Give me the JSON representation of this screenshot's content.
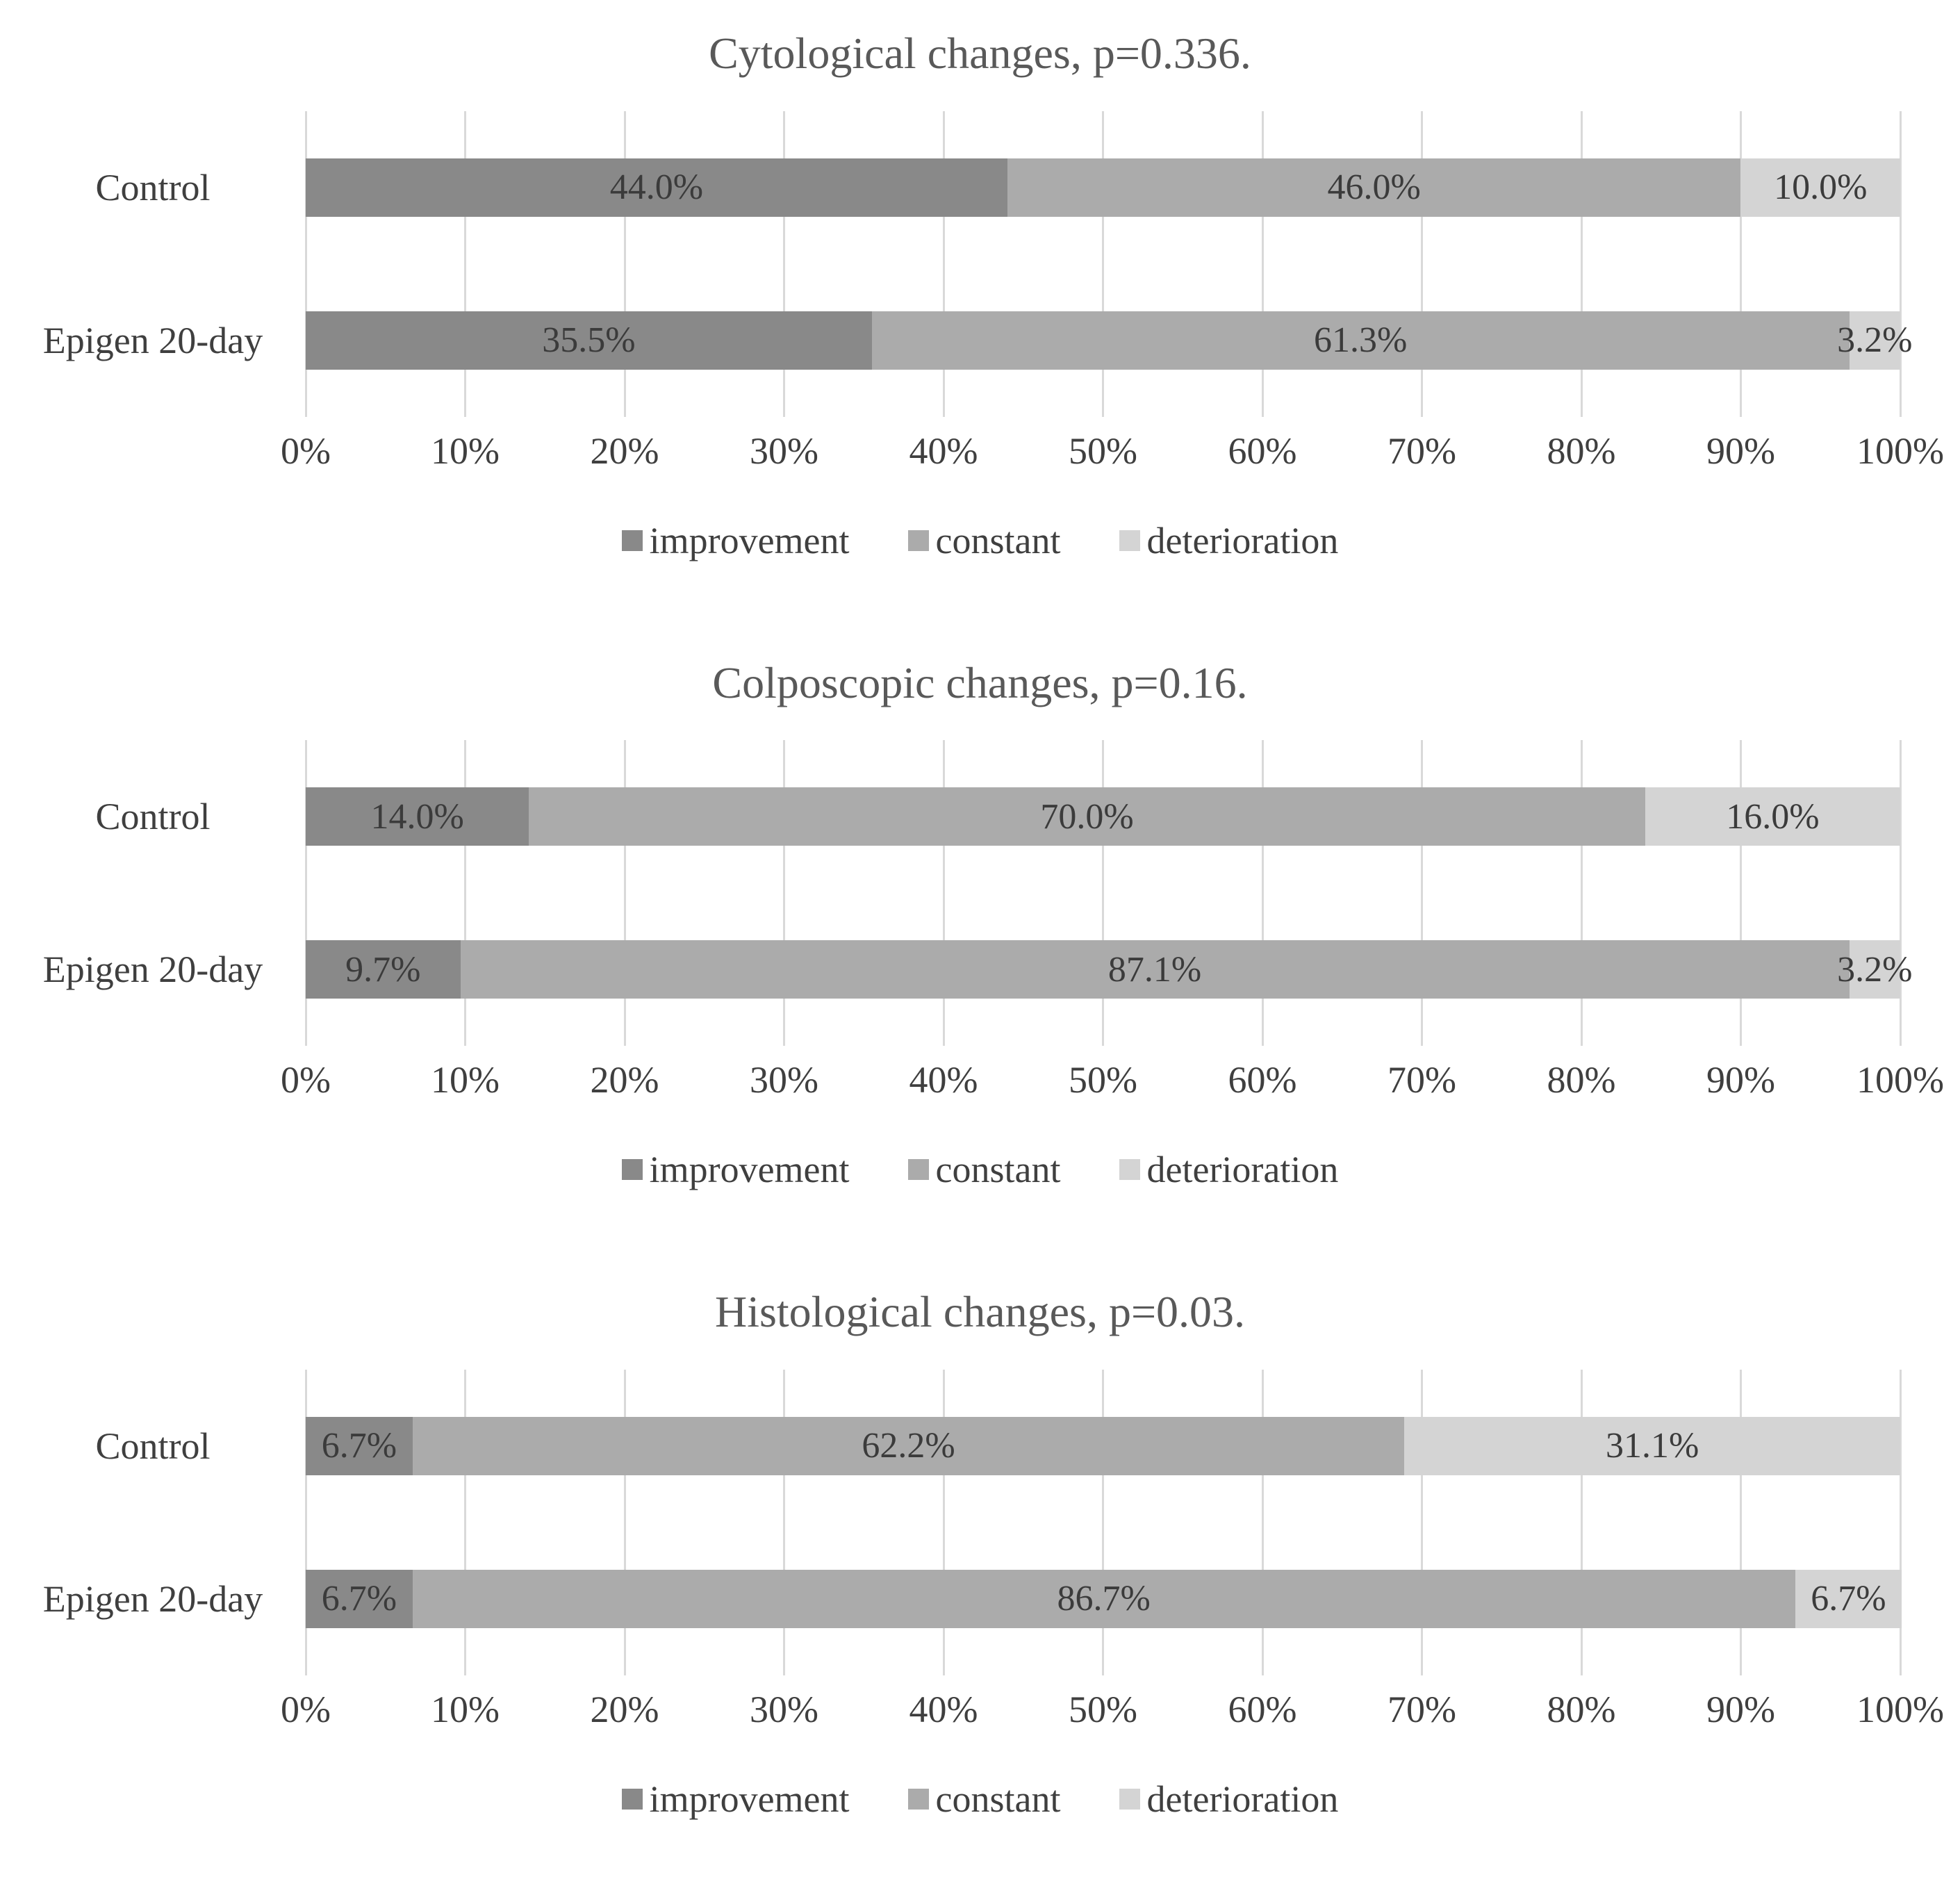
{
  "page": {
    "background": "#ffffff"
  },
  "colors": {
    "improvement": "#898989",
    "constant": "#ababab",
    "deterioration": "#d4d4d4",
    "gridline": "#d9d9d9",
    "title_text": "#595959",
    "label_text": "#3f3f3f"
  },
  "chart_data": [
    {
      "type": "bar",
      "orientation": "horizontal",
      "stacked": true,
      "title": "Cytological changes, p=0.336.",
      "categories": [
        "Control",
        "Epigen 20-day"
      ],
      "series": [
        {
          "name": "improvement",
          "color": "#898989",
          "values": [
            44.0,
            35.5
          ]
        },
        {
          "name": "constant",
          "color": "#ababab",
          "values": [
            46.0,
            61.3
          ]
        },
        {
          "name": "deterioration",
          "color": "#d4d4d4",
          "values": [
            10.0,
            3.2
          ]
        }
      ],
      "data_labels": [
        [
          "44.0%",
          "46.0%",
          "10.0%"
        ],
        [
          "35.5%",
          "61.3%",
          "3.2%"
        ]
      ],
      "x_ticks": [
        "0%",
        "10%",
        "20%",
        "30%",
        "40%",
        "50%",
        "60%",
        "70%",
        "80%",
        "90%",
        "100%"
      ],
      "xlim": [
        0,
        100
      ],
      "grid": true,
      "legend_position": "bottom",
      "legend": [
        {
          "label": "improvement",
          "color": "#898989"
        },
        {
          "label": "constant",
          "color": "#ababab"
        },
        {
          "label": "deterioration",
          "color": "#d4d4d4"
        }
      ]
    },
    {
      "type": "bar",
      "orientation": "horizontal",
      "stacked": true,
      "title": "Colposcopic changes, p=0.16.",
      "categories": [
        "Control",
        "Epigen 20-day"
      ],
      "series": [
        {
          "name": "improvement",
          "color": "#898989",
          "values": [
            14.0,
            9.7
          ]
        },
        {
          "name": "constant",
          "color": "#ababab",
          "values": [
            70.0,
            87.1
          ]
        },
        {
          "name": "deterioration",
          "color": "#d4d4d4",
          "values": [
            16.0,
            3.2
          ]
        }
      ],
      "data_labels": [
        [
          "14.0%",
          "70.0%",
          "16.0%"
        ],
        [
          "9.7%",
          "87.1%",
          "3.2%"
        ]
      ],
      "x_ticks": [
        "0%",
        "10%",
        "20%",
        "30%",
        "40%",
        "50%",
        "60%",
        "70%",
        "80%",
        "90%",
        "100%"
      ],
      "xlim": [
        0,
        100
      ],
      "grid": true,
      "legend_position": "bottom",
      "legend": [
        {
          "label": "improvement",
          "color": "#898989"
        },
        {
          "label": "constant",
          "color": "#ababab"
        },
        {
          "label": "deterioration",
          "color": "#d4d4d4"
        }
      ]
    },
    {
      "type": "bar",
      "orientation": "horizontal",
      "stacked": true,
      "title": "Histological changes, p=0.03.",
      "categories": [
        "Control",
        "Epigen 20-day"
      ],
      "series": [
        {
          "name": "improvement",
          "color": "#898989",
          "values": [
            6.7,
            6.7
          ]
        },
        {
          "name": "constant",
          "color": "#ababab",
          "values": [
            62.2,
            86.7
          ]
        },
        {
          "name": "deterioration",
          "color": "#d4d4d4",
          "values": [
            31.1,
            6.7
          ]
        }
      ],
      "data_labels": [
        [
          "6.7%",
          "62.2%",
          "31.1%"
        ],
        [
          "6.7%",
          "86.7%",
          "6.7%"
        ]
      ],
      "x_ticks": [
        "0%",
        "10%",
        "20%",
        "30%",
        "40%",
        "50%",
        "60%",
        "70%",
        "80%",
        "90%",
        "100%"
      ],
      "xlim": [
        0,
        100
      ],
      "grid": true,
      "legend_position": "bottom",
      "legend": [
        {
          "label": "improvement",
          "color": "#898989"
        },
        {
          "label": "constant",
          "color": "#ababab"
        },
        {
          "label": "deterioration",
          "color": "#d4d4d4"
        }
      ]
    }
  ]
}
